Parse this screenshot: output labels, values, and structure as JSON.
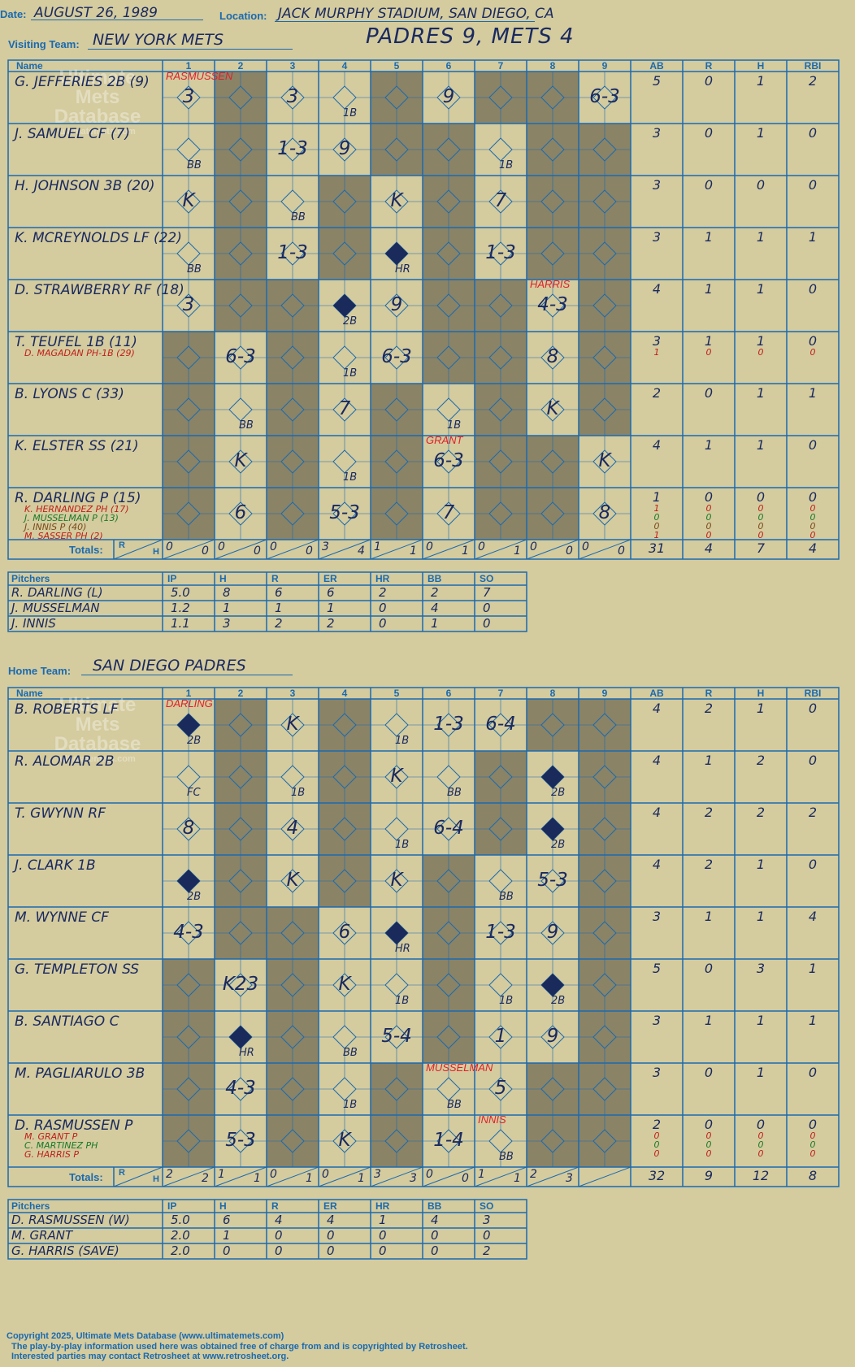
{
  "header": {
    "date_label": "Date:",
    "date": "AUGUST 26, 1989",
    "location_label": "Location:",
    "location": "JACK MURPHY STADIUM, SAN DIEGO, CA",
    "visiting_label": "Visiting Team:",
    "visiting_team": "NEW YORK METS",
    "score_title": "PADRES 9, METS 4",
    "home_label": "Home Team:",
    "home_team": "SAN DIEGO PADRES"
  },
  "columns": {
    "name": "Name",
    "innings": [
      "1",
      "2",
      "3",
      "4",
      "5",
      "6",
      "7",
      "8",
      "9"
    ],
    "stats": [
      "AB",
      "R",
      "H",
      "RBI"
    ],
    "totals_label": "Totals:",
    "r": "R",
    "h": "H"
  },
  "logo": {
    "line1": "Ultimate",
    "line2": "Mets",
    "line3": "Database",
    "url": "ultimatemets.com"
  },
  "mets": {
    "batters": [
      {
        "name": "G. JEFFERIES 2B (9)",
        "stats": [
          "5",
          "0",
          "1",
          "2"
        ],
        "subs": []
      },
      {
        "name": "J. SAMUEL CF (7)",
        "stats": [
          "3",
          "0",
          "1",
          "0"
        ],
        "subs": []
      },
      {
        "name": "H. JOHNSON 3B (20)",
        "stats": [
          "3",
          "0",
          "0",
          "0"
        ],
        "subs": []
      },
      {
        "name": "K. MCREYNOLDS LF (22)",
        "stats": [
          "3",
          "1",
          "1",
          "1"
        ],
        "subs": []
      },
      {
        "name": "D. STRAWBERRY RF (18)",
        "stats": [
          "4",
          "1",
          "1",
          "0"
        ],
        "subs": []
      },
      {
        "name": "T. TEUFEL 1B (11)",
        "stats": [
          "3",
          "1",
          "1",
          "0"
        ],
        "subs": [
          {
            "name": "D. MAGADAN PH-1B (29)",
            "color": "#c0201a",
            "stats": [
              "1",
              "0",
              "0",
              "0"
            ]
          }
        ]
      },
      {
        "name": "B. LYONS C (33)",
        "stats": [
          "2",
          "0",
          "1",
          "1"
        ],
        "subs": []
      },
      {
        "name": "K. ELSTER SS (21)",
        "stats": [
          "4",
          "1",
          "1",
          "0"
        ],
        "subs": []
      },
      {
        "name": "R. DARLING P (15)",
        "stats": [
          "1",
          "0",
          "0",
          "0"
        ],
        "subs": [
          {
            "name": "K. HERNANDEZ PH (17)",
            "color": "#c0201a",
            "stats": [
              "1",
              "0",
              "0",
              "0"
            ]
          },
          {
            "name": "J. MUSSELMAN P (13)",
            "color": "#1a7a2a",
            "stats": [
              "0",
              "0",
              "0",
              "0"
            ]
          },
          {
            "name": "J. INNIS P (40)",
            "color": "#7a4a1a",
            "stats": [
              "0",
              "0",
              "0",
              "0"
            ]
          },
          {
            "name": "M. SASSER PH (2)",
            "color": "#c0201a",
            "stats": [
              "1",
              "0",
              "0",
              "0"
            ]
          }
        ]
      }
    ],
    "plays": [
      {
        "r": 0,
        "c": 0,
        "t": "3"
      },
      {
        "r": 0,
        "c": 2,
        "t": "3"
      },
      {
        "r": 0,
        "c": 3,
        "t": "1B"
      },
      {
        "r": 0,
        "c": 5,
        "t": "9"
      },
      {
        "r": 0,
        "c": 8,
        "t": "6-3"
      },
      {
        "r": 1,
        "c": 0,
        "t": "BB"
      },
      {
        "r": 1,
        "c": 2,
        "t": "1-3"
      },
      {
        "r": 1,
        "c": 3,
        "t": "9"
      },
      {
        "r": 1,
        "c": 6,
        "t": "1B"
      },
      {
        "r": 2,
        "c": 0,
        "t": "K"
      },
      {
        "r": 2,
        "c": 2,
        "t": "BB"
      },
      {
        "r": 2,
        "c": 4,
        "t": "K"
      },
      {
        "r": 2,
        "c": 6,
        "t": "7"
      },
      {
        "r": 3,
        "c": 0,
        "t": "BB"
      },
      {
        "r": 3,
        "c": 2,
        "t": "1-3"
      },
      {
        "r": 3,
        "c": 4,
        "t": "HR"
      },
      {
        "r": 3,
        "c": 6,
        "t": "1-3"
      },
      {
        "r": 4,
        "c": 0,
        "t": "3"
      },
      {
        "r": 4,
        "c": 3,
        "t": "2B"
      },
      {
        "r": 4,
        "c": 4,
        "t": "9"
      },
      {
        "r": 4,
        "c": 7,
        "t": "4-3"
      },
      {
        "r": 5,
        "c": 1,
        "t": "6-3"
      },
      {
        "r": 5,
        "c": 3,
        "t": "1B"
      },
      {
        "r": 5,
        "c": 4,
        "t": "6-3"
      },
      {
        "r": 5,
        "c": 7,
        "t": "8"
      },
      {
        "r": 6,
        "c": 1,
        "t": "BB"
      },
      {
        "r": 6,
        "c": 3,
        "t": "7"
      },
      {
        "r": 6,
        "c": 5,
        "t": "1B"
      },
      {
        "r": 6,
        "c": 7,
        "t": "K"
      },
      {
        "r": 7,
        "c": 1,
        "t": "K"
      },
      {
        "r": 7,
        "c": 3,
        "t": "1B"
      },
      {
        "r": 7,
        "c": 5,
        "t": "6-3"
      },
      {
        "r": 7,
        "c": 8,
        "t": "K"
      },
      {
        "r": 8,
        "c": 1,
        "t": "6"
      },
      {
        "r": 8,
        "c": 3,
        "t": "5-3"
      },
      {
        "r": 8,
        "c": 5,
        "t": "7"
      },
      {
        "r": 8,
        "c": 8,
        "t": "8"
      }
    ],
    "notes": [
      {
        "r": 0,
        "c": 0,
        "t": "RASMUSSEN"
      },
      {
        "r": 4,
        "c": 7,
        "t": "HARRIS"
      },
      {
        "r": 7,
        "c": 5,
        "t": "GRANT"
      }
    ],
    "totals_by_inning": [
      [
        "0",
        "0"
      ],
      [
        "0",
        "0"
      ],
      [
        "0",
        "0"
      ],
      [
        "3",
        "4"
      ],
      [
        "1",
        "1"
      ],
      [
        "0",
        "1"
      ],
      [
        "0",
        "1"
      ],
      [
        "0",
        "0"
      ],
      [
        "0",
        "0"
      ]
    ],
    "totals": [
      "31",
      "4",
      "7",
      "4"
    ],
    "pitchers_label": "Pitchers",
    "pitch_cols": [
      "IP",
      "H",
      "R",
      "ER",
      "HR",
      "BB",
      "SO"
    ],
    "pitchers": [
      {
        "name": "R. DARLING (L)",
        "vals": [
          "5.0",
          "8",
          "6",
          "6",
          "2",
          "2",
          "7"
        ]
      },
      {
        "name": "J. MUSSELMAN",
        "vals": [
          "1.2",
          "1",
          "1",
          "1",
          "0",
          "4",
          "0"
        ]
      },
      {
        "name": "J. INNIS",
        "vals": [
          "1.1",
          "3",
          "2",
          "2",
          "0",
          "1",
          "0"
        ]
      }
    ]
  },
  "padres": {
    "batters": [
      {
        "name": "B. ROBERTS LF",
        "stats": [
          "4",
          "2",
          "1",
          "0"
        ],
        "subs": []
      },
      {
        "name": "R. ALOMAR 2B",
        "stats": [
          "4",
          "1",
          "2",
          "0"
        ],
        "subs": []
      },
      {
        "name": "T. GWYNN RF",
        "stats": [
          "4",
          "2",
          "2",
          "2"
        ],
        "subs": []
      },
      {
        "name": "J. CLARK 1B",
        "stats": [
          "4",
          "2",
          "1",
          "0"
        ],
        "subs": []
      },
      {
        "name": "M. WYNNE CF",
        "stats": [
          "3",
          "1",
          "1",
          "4"
        ],
        "subs": []
      },
      {
        "name": "G. TEMPLETON SS",
        "stats": [
          "5",
          "0",
          "3",
          "1"
        ],
        "subs": []
      },
      {
        "name": "B. SANTIAGO C",
        "stats": [
          "3",
          "1",
          "1",
          "1"
        ],
        "subs": []
      },
      {
        "name": "M. PAGLIARULO 3B",
        "stats": [
          "3",
          "0",
          "1",
          "0"
        ],
        "subs": []
      },
      {
        "name": "D. RASMUSSEN P",
        "stats": [
          "2",
          "0",
          "0",
          "0"
        ],
        "subs": [
          {
            "name": "M. GRANT P",
            "color": "#c0201a",
            "stats": [
              "0",
              "0",
              "0",
              "0"
            ]
          },
          {
            "name": "C. MARTINEZ PH",
            "color": "#1a7a2a",
            "stats": [
              "0",
              "0",
              "0",
              "0"
            ]
          },
          {
            "name": "G. HARRIS P",
            "color": "#c0201a",
            "stats": [
              "0",
              "0",
              "0",
              "0"
            ]
          }
        ]
      }
    ],
    "plays": [
      {
        "r": 0,
        "c": 0,
        "t": "2B"
      },
      {
        "r": 0,
        "c": 2,
        "t": "K"
      },
      {
        "r": 0,
        "c": 4,
        "t": "1B"
      },
      {
        "r": 0,
        "c": 5,
        "t": "1-3"
      },
      {
        "r": 0,
        "c": 6,
        "t": "6-4"
      },
      {
        "r": 1,
        "c": 0,
        "t": "FC"
      },
      {
        "r": 1,
        "c": 2,
        "t": "1B"
      },
      {
        "r": 1,
        "c": 4,
        "t": "K"
      },
      {
        "r": 1,
        "c": 5,
        "t": "BB"
      },
      {
        "r": 1,
        "c": 7,
        "t": "2B"
      },
      {
        "r": 2,
        "c": 0,
        "t": "8"
      },
      {
        "r": 2,
        "c": 2,
        "t": "4"
      },
      {
        "r": 2,
        "c": 4,
        "t": "1B"
      },
      {
        "r": 2,
        "c": 5,
        "t": "6-4"
      },
      {
        "r": 2,
        "c": 7,
        "t": "2B"
      },
      {
        "r": 3,
        "c": 0,
        "t": "2B"
      },
      {
        "r": 3,
        "c": 2,
        "t": "K"
      },
      {
        "r": 3,
        "c": 4,
        "t": "K"
      },
      {
        "r": 3,
        "c": 6,
        "t": "BB"
      },
      {
        "r": 3,
        "c": 7,
        "t": "5-3"
      },
      {
        "r": 4,
        "c": 0,
        "t": "4-3"
      },
      {
        "r": 4,
        "c": 3,
        "t": "6"
      },
      {
        "r": 4,
        "c": 4,
        "t": "HR"
      },
      {
        "r": 4,
        "c": 6,
        "t": "1-3"
      },
      {
        "r": 4,
        "c": 7,
        "t": "9"
      },
      {
        "r": 5,
        "c": 1,
        "t": "K23"
      },
      {
        "r": 5,
        "c": 3,
        "t": "K"
      },
      {
        "r": 5,
        "c": 4,
        "t": "1B"
      },
      {
        "r": 5,
        "c": 6,
        "t": "1B"
      },
      {
        "r": 5,
        "c": 7,
        "t": "2B"
      },
      {
        "r": 6,
        "c": 1,
        "t": "HR"
      },
      {
        "r": 6,
        "c": 3,
        "t": "BB"
      },
      {
        "r": 6,
        "c": 4,
        "t": "5-4"
      },
      {
        "r": 6,
        "c": 6,
        "t": "1"
      },
      {
        "r": 6,
        "c": 7,
        "t": "9"
      },
      {
        "r": 7,
        "c": 1,
        "t": "4-3"
      },
      {
        "r": 7,
        "c": 3,
        "t": "1B"
      },
      {
        "r": 7,
        "c": 5,
        "t": "BB"
      },
      {
        "r": 7,
        "c": 6,
        "t": "5"
      },
      {
        "r": 8,
        "c": 1,
        "t": "5-3"
      },
      {
        "r": 8,
        "c": 3,
        "t": "K"
      },
      {
        "r": 8,
        "c": 5,
        "t": "1-4"
      },
      {
        "r": 8,
        "c": 6,
        "t": "BB"
      }
    ],
    "notes": [
      {
        "r": 0,
        "c": 0,
        "t": "DARLING"
      },
      {
        "r": 7,
        "c": 5,
        "t": "MUSSELMAN"
      },
      {
        "r": 8,
        "c": 6,
        "t": "INNIS"
      }
    ],
    "totals_by_inning": [
      [
        "2",
        "2"
      ],
      [
        "1",
        "1"
      ],
      [
        "0",
        "1"
      ],
      [
        "0",
        "1"
      ],
      [
        "3",
        "3"
      ],
      [
        "0",
        "0"
      ],
      [
        "1",
        "1"
      ],
      [
        "2",
        "3"
      ],
      [
        "",
        ""
      ]
    ],
    "totals": [
      "32",
      "9",
      "12",
      "8"
    ],
    "pitchers_label": "Pitchers",
    "pitch_cols": [
      "IP",
      "H",
      "R",
      "ER",
      "HR",
      "BB",
      "SO"
    ],
    "pitchers": [
      {
        "name": "D. RASMUSSEN (W)",
        "vals": [
          "5.0",
          "6",
          "4",
          "4",
          "1",
          "4",
          "3"
        ]
      },
      {
        "name": "M. GRANT",
        "vals": [
          "2.0",
          "1",
          "0",
          "0",
          "0",
          "0",
          "0"
        ]
      },
      {
        "name": "G. HARRIS (SAVE)",
        "vals": [
          "2.0",
          "0",
          "0",
          "0",
          "0",
          "0",
          "2"
        ]
      }
    ]
  },
  "footer": {
    "line1": "Copyright 2025, Ultimate Mets Database (www.ultimatemets.com)",
    "line2": "The play-by-play information used here was obtained free of charge from and is copyrighted by Retrosheet.",
    "line3": "Interested parties may contact Retrosheet at www.retrosheet.org."
  }
}
